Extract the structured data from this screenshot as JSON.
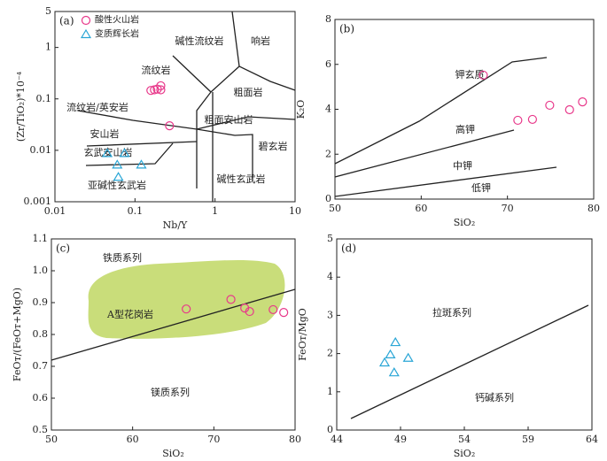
{
  "chart_data": [
    {
      "type": "scatter",
      "label": "(a)",
      "x_label": "Nb/Y",
      "y_label": "(Zr/TiO₂)*10⁻⁴",
      "xscale": "log",
      "yscale": "log",
      "xlim": [
        0.01,
        10
      ],
      "ylim": [
        0.001,
        5
      ],
      "xticks": [
        0.01,
        0.1,
        1,
        10
      ],
      "yticks": [
        0.001,
        0.01,
        0.1,
        1,
        5
      ],
      "legend": "upper left",
      "annotations": [
        "碱性流纹岩",
        "响岩",
        "流纹岩",
        "粗面岩",
        "流纹岩/英安岩",
        "粗面安山岩",
        "安山岩",
        "碧玄岩",
        "玄武安山岩",
        "亚碱性玄武岩",
        "碱性玄武岩"
      ],
      "series": [
        {
          "name": "酸性火山岩",
          "color": "#e8388a",
          "marker": "circle",
          "x": [
            0.158,
            0.175,
            0.19,
            0.21,
            0.21,
            0.27
          ],
          "values": [
            0.146,
            0.15,
            0.155,
            0.18,
            0.15,
            0.03
          ]
        },
        {
          "name": "变质辉长岩",
          "color": "#2aa6d6",
          "marker": "triangle",
          "x": [
            0.045,
            0.06,
            0.062,
            0.074,
            0.12
          ],
          "values": [
            0.0087,
            0.0052,
            0.003,
            0.0087,
            0.0052
          ]
        }
      ]
    },
    {
      "type": "scatter",
      "label": "(b)",
      "x_label": "SiO₂",
      "y_label": "K₂O",
      "xlim": [
        50,
        80
      ],
      "ylim": [
        0,
        8
      ],
      "xticks": [
        50,
        60,
        70,
        80
      ],
      "yticks": [
        0,
        2,
        4,
        6,
        8
      ],
      "annotations": [
        "钾玄质",
        "高钾",
        "中钾",
        "低钾"
      ],
      "series": [
        {
          "name": "酸性火山岩",
          "color": "#e8388a",
          "marker": "circle",
          "x": [
            67.2,
            71.2,
            72.9,
            74.9,
            77.2,
            78.7
          ],
          "values": [
            5.52,
            3.51,
            3.55,
            4.18,
            3.98,
            4.33
          ]
        }
      ]
    },
    {
      "type": "scatter",
      "label": "(c)",
      "x_label": "SiO₂",
      "y_label": "FeOᴛ/(FeOᴛ+MgO)",
      "xlim": [
        50,
        80
      ],
      "ylim": [
        0.5,
        1.1
      ],
      "xticks": [
        50,
        60,
        70,
        80
      ],
      "yticks": [
        0.5,
        0.6,
        0.7,
        0.8,
        0.9,
        {
          "value": 1,
          "label": "1.0"
        },
        1.1
      ],
      "annotations": [
        "铁质系列",
        "A型花岗岩",
        "镁质系列"
      ],
      "series": [
        {
          "name": "酸性火山岩",
          "color": "#e8388a",
          "marker": "circle",
          "x": [
            66.6,
            72.1,
            73.8,
            74.4,
            77.3,
            78.6
          ],
          "values": [
            0.88,
            0.91,
            0.883,
            0.872,
            0.878,
            0.869
          ]
        }
      ]
    },
    {
      "type": "scatter",
      "label": "(d)",
      "x_label": "SiO₂",
      "y_label": "FeOᴛ/MgO",
      "xlim": [
        44,
        64
      ],
      "ylim": [
        0,
        5
      ],
      "xticks": [
        44,
        49,
        54,
        59,
        64
      ],
      "yticks": [
        0,
        1,
        2,
        3,
        4,
        5
      ],
      "annotations": [
        "拉斑系列",
        "钙碱系列"
      ],
      "series": [
        {
          "name": "变质辉长岩",
          "color": "#2aa6d6",
          "marker": "triangle",
          "x": [
            48.6,
            48.2,
            47.75,
            49.6,
            48.5
          ],
          "values": [
            2.29,
            1.97,
            1.76,
            1.88,
            1.5
          ]
        }
      ]
    }
  ]
}
